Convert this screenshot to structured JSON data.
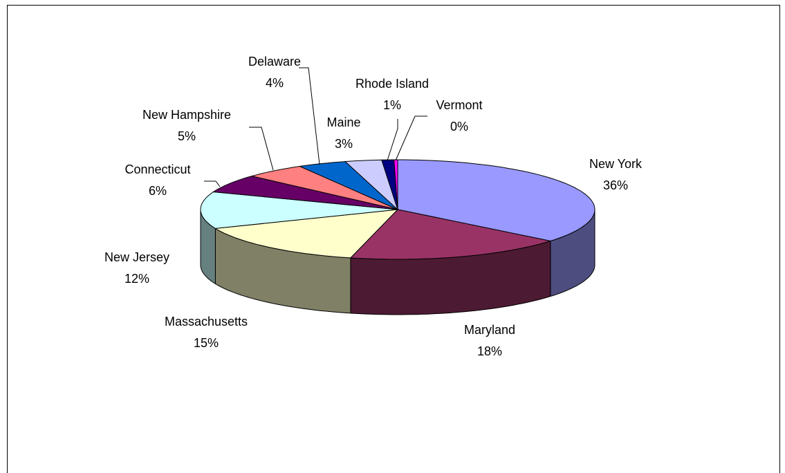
{
  "chart_data": {
    "type": "pie3d",
    "categories": [
      "New York",
      "Maryland",
      "Massachusetts",
      "New Jersey",
      "Connecticut",
      "New Hampshire",
      "Delaware",
      "Maine",
      "Rhode Island",
      "Vermont"
    ],
    "values": [
      36,
      18,
      15,
      12,
      6,
      5,
      4,
      3,
      1,
      0.3
    ],
    "value_labels": [
      "36%",
      "18%",
      "15%",
      "12%",
      "6%",
      "5%",
      "4%",
      "3%",
      "1%",
      "0%"
    ],
    "colors": [
      "#9999ff",
      "#993366",
      "#ffffcc",
      "#ccffff",
      "#660066",
      "#ff8080",
      "#0066cc",
      "#ccccff",
      "#000080",
      "#ff00ff"
    ]
  }
}
